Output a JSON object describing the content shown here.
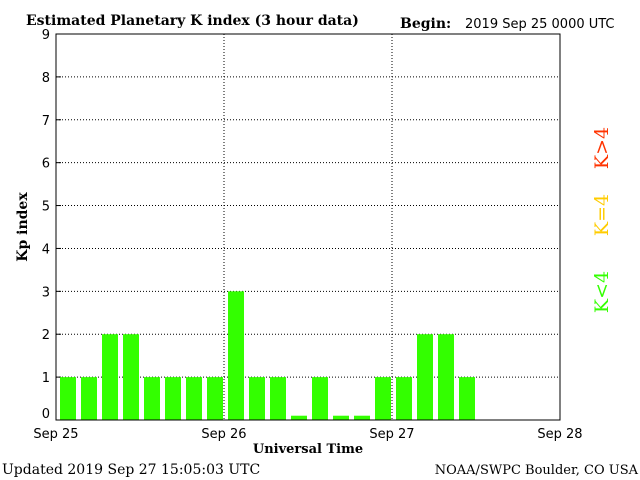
{
  "header": {
    "title": "Estimated Planetary K index (3 hour data)",
    "begin_label": "Begin:",
    "begin_value": "2019 Sep 25 0000 UTC"
  },
  "footer": {
    "updated": "Updated 2019 Sep 27 15:05:03 UTC",
    "credit": "NOAA/SWPC Boulder, CO USA"
  },
  "legend": {
    "high": {
      "label": "K>4",
      "color": "#ff3300"
    },
    "equal": {
      "label": "K=4",
      "color": "#ffcc00"
    },
    "low": {
      "label": "K<4",
      "color": "#33ff00"
    }
  },
  "chart_data": {
    "type": "bar",
    "title": "Estimated Planetary K index (3 hour data)",
    "xlabel": "Universal Time",
    "ylabel": "Kp index",
    "ylim": [
      0,
      9
    ],
    "yticks": [
      "0",
      "1",
      "2",
      "3",
      "4",
      "5",
      "6",
      "7",
      "8",
      "9"
    ],
    "xticks": [
      "Sep 25",
      "Sep 26",
      "Sep 27",
      "Sep 28"
    ],
    "interval_hours": 3,
    "values": [
      1,
      1,
      2,
      2,
      1,
      1,
      1,
      1,
      3,
      1,
      1,
      0.1,
      1,
      0.1,
      0.1,
      1,
      1,
      2,
      2,
      1
    ],
    "bar_color": "#33ff00",
    "grid": true
  }
}
